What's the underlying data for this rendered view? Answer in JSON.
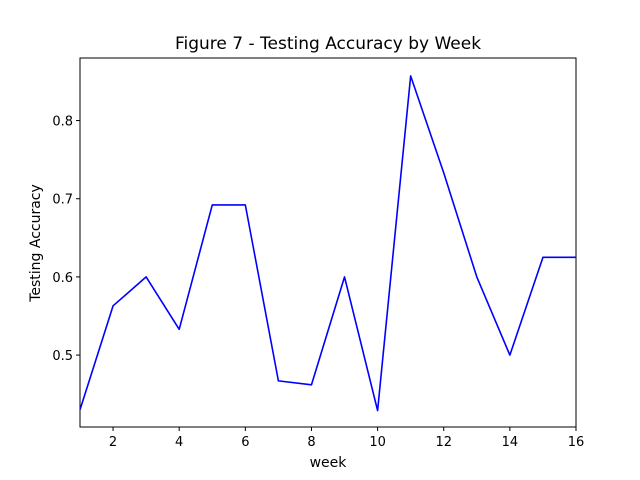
{
  "chart_data": {
    "type": "line",
    "title": "Figure 7 - Testing Accuracy by Week",
    "xlabel": "week",
    "ylabel": "Testing Accuracy",
    "x": [
      1,
      2,
      3,
      4,
      5,
      6,
      7,
      8,
      9,
      10,
      11,
      12,
      13,
      14,
      15,
      16
    ],
    "series": [
      {
        "values": [
          0.43,
          0.563,
          0.6,
          0.533,
          0.692,
          0.692,
          0.467,
          0.462,
          0.6,
          0.429,
          0.857,
          0.733,
          0.6,
          0.5,
          0.625,
          0.625
        ],
        "color": "#0000ff"
      }
    ],
    "xlim": [
      1,
      16
    ],
    "ylim": [
      0.408,
      0.88
    ],
    "xticks": [
      2,
      4,
      6,
      8,
      10,
      12,
      14,
      16
    ],
    "xtick_labels": [
      "2",
      "4",
      "6",
      "8",
      "10",
      "12",
      "14",
      "16"
    ],
    "yticks": [
      0.5,
      0.6,
      0.7,
      0.8
    ],
    "ytick_labels": [
      "0.5",
      "0.6",
      "0.7",
      "0.8"
    ],
    "grid": false,
    "legend": "none"
  }
}
